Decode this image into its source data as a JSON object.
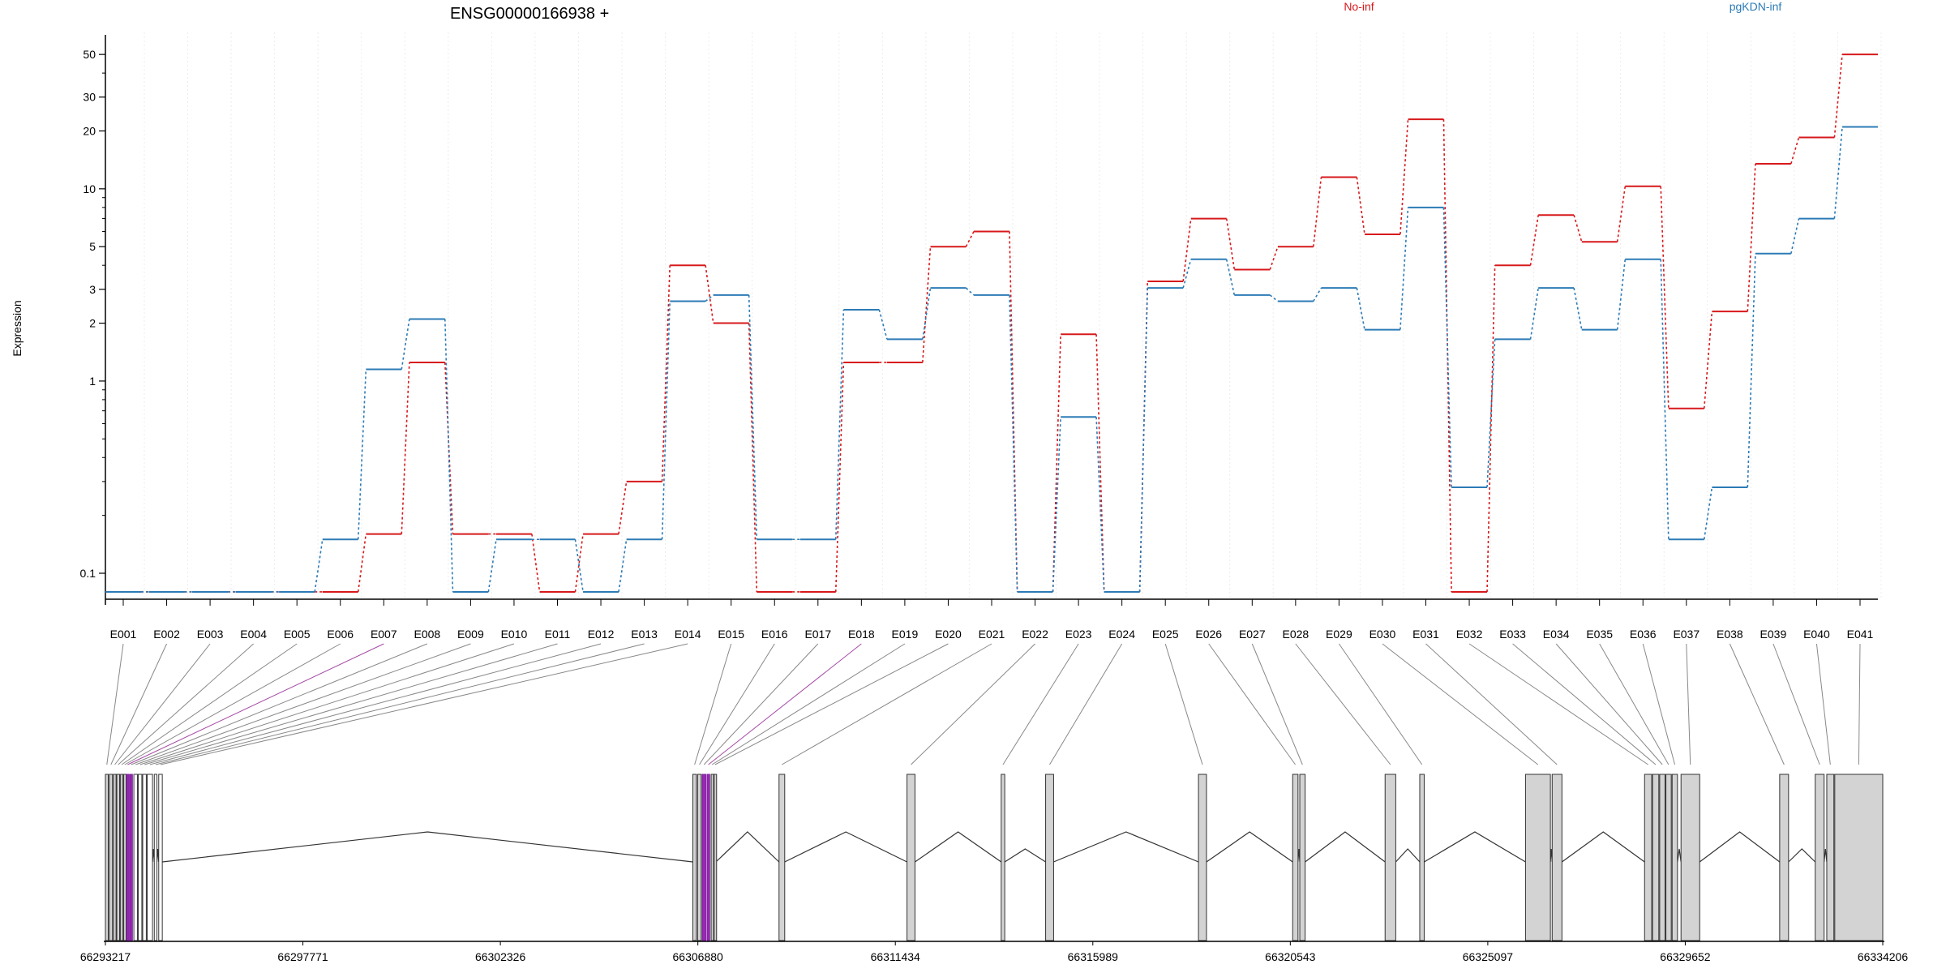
{
  "header": {
    "gene_title": "ENSG00000166938 +"
  },
  "chart_data": {
    "type": "line",
    "title": "ENSG00000166938 +",
    "ylabel": "Expression",
    "y_scale": "log",
    "y_ticks": [
      0.1,
      1,
      2,
      3,
      5,
      10,
      20,
      30,
      50
    ],
    "y_tick_labels": [
      "0.1",
      "1",
      "2",
      "3",
      "5",
      "10",
      "20",
      "30",
      "50"
    ],
    "ylim": [
      0.074,
      62
    ],
    "legend_position": "top",
    "categories": [
      "E001",
      "E002",
      "E003",
      "E004",
      "E005",
      "E006",
      "E007",
      "E008",
      "E009",
      "E010",
      "E011",
      "E012",
      "E013",
      "E014",
      "E015",
      "E016",
      "E017",
      "E018",
      "E019",
      "E020",
      "E021",
      "E022",
      "E023",
      "E024",
      "E025",
      "E026",
      "E027",
      "E028",
      "E029",
      "E030",
      "E031",
      "E032",
      "E033",
      "E034",
      "E035",
      "E036",
      "E037",
      "E038",
      "E039",
      "E040",
      "E041"
    ],
    "series": [
      {
        "name": "No-inf",
        "color": "#d7191c",
        "values": [
          0.08,
          0.08,
          0.08,
          0.08,
          0.08,
          0.08,
          0.16,
          1.25,
          0.16,
          0.16,
          0.08,
          0.16,
          0.3,
          4,
          2,
          0.08,
          0.08,
          1.25,
          1.25,
          5,
          6,
          0.08,
          1.75,
          0.08,
          3.3,
          7,
          3.8,
          5,
          11.5,
          5.8,
          23,
          0.08,
          4,
          7.3,
          5.3,
          10.3,
          0.72,
          2.3,
          13.5,
          18.5,
          50
        ]
      },
      {
        "name": "pgKDN-inf",
        "color": "#2c7bb6",
        "values": [
          0.08,
          0.08,
          0.08,
          0.08,
          0.08,
          0.15,
          1.15,
          2.1,
          0.08,
          0.15,
          0.15,
          0.08,
          0.15,
          2.6,
          2.8,
          0.15,
          0.15,
          2.35,
          1.65,
          3.05,
          2.8,
          0.08,
          0.65,
          0.08,
          3.05,
          4.3,
          2.8,
          2.6,
          3.05,
          1.85,
          8,
          0.28,
          1.65,
          3.05,
          1.85,
          4.3,
          0.15,
          0.28,
          4.6,
          7,
          21
        ]
      }
    ],
    "gene_model": {
      "coordinate_labels": [
        "66293217",
        "66297771",
        "66302326",
        "66306880",
        "66311434",
        "66315989",
        "66320543",
        "66325097",
        "66329652",
        "66334206"
      ]
    }
  }
}
